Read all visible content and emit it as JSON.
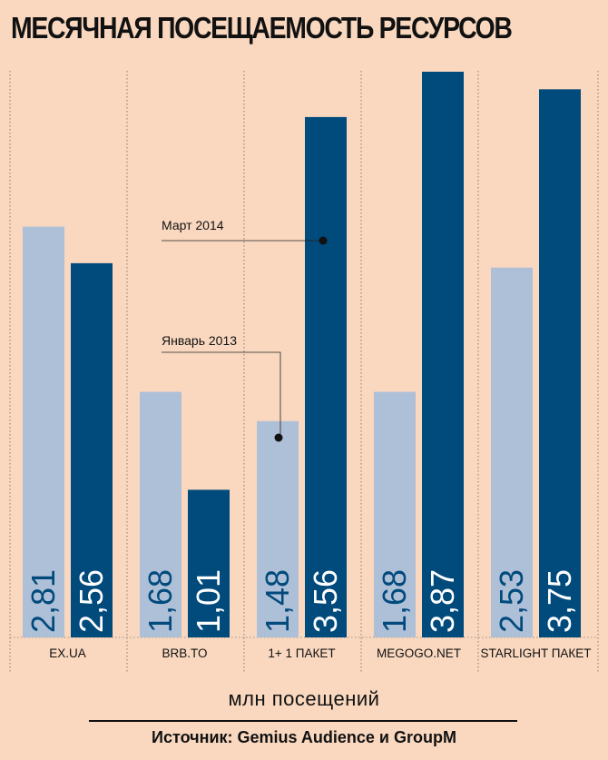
{
  "chart_data": {
    "type": "bar",
    "title": "МЕСЯЧНАЯ ПОСЕЩАЕМОСТЬ РЕСУРСОВ",
    "categories": [
      "EX.UA",
      "BRB.TO",
      "1+ 1 ПАКЕТ",
      "MEGOGO.NET",
      "STARLIGHT ПАКЕТ"
    ],
    "series": [
      {
        "name": "Январь 2013",
        "color": "#aebfd8",
        "values": [
          2.81,
          1.68,
          1.48,
          1.68,
          2.53
        ],
        "labels": [
          "2,81",
          "1,68",
          "1,48",
          "1,68",
          "2,53"
        ]
      },
      {
        "name": "Март 2014",
        "color": "#004a7c",
        "values": [
          2.56,
          1.01,
          3.56,
          3.87,
          3.75
        ],
        "labels": [
          "2,56",
          "1,01",
          "3,56",
          "3,87",
          "3,75"
        ]
      }
    ],
    "ylabel": "млн посещений",
    "ylim": [
      0,
      3.87
    ],
    "annotations": [
      {
        "text": "Март 2014",
        "series": 1,
        "category": 2
      },
      {
        "text": "Январь 2013",
        "series": 0,
        "category": 2
      }
    ]
  },
  "units_label": "млн посещений",
  "source_text": "Источник:  Gemius Audience и GroupM",
  "colors": {
    "background": "#f9d8bf",
    "jan": "#aebfd8",
    "mar": "#004a7c"
  }
}
